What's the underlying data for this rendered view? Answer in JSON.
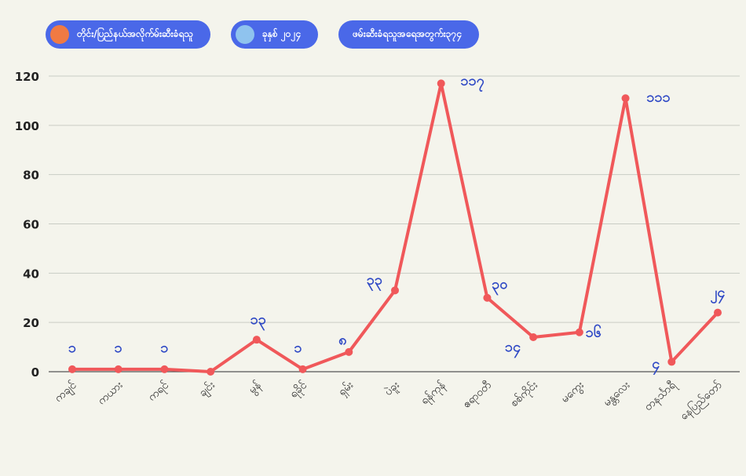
{
  "legend": {
    "items": [
      {
        "label": "တိုင်း/ပြည်နယ်အလိုက်မ်းဆီးခံရသူ",
        "color": "#f07a43"
      },
      {
        "label": "ခုနှစ် ၂၀၂၄",
        "color": "#8fc3ee"
      },
      {
        "label": "ဖမ်းဆီးခံရသူအရေအတွက်း၃၇၄"
      }
    ]
  },
  "chart_data": {
    "type": "line",
    "categories": [
      "ကချင်",
      "ကယား",
      "ကရင်",
      "ချင်း",
      "မွန်",
      "ရခိုင်",
      "ရှမ်း",
      "ပဲခူး",
      "ရန်ကုန်",
      "ဧရာဝတီ",
      "စစ်ကိုင်း",
      "မကွေး",
      "မန္တလေး",
      "တနင်္သာရီ",
      "နေပြည်တော်"
    ],
    "values": [
      1,
      1,
      1,
      0,
      13,
      1,
      8,
      33,
      117,
      30,
      14,
      16,
      111,
      4,
      24
    ],
    "data_labels": [
      "၁",
      "၁",
      "၁",
      "",
      "၁၃",
      "၁",
      "၈",
      "၃၃",
      "၁၁၇",
      "၃၀",
      "၁၄",
      "၁၆",
      "၁၁၁",
      "၄",
      "၂၄"
    ],
    "y_ticks": [
      0,
      20,
      40,
      60,
      80,
      100,
      120
    ],
    "ylim": [
      0,
      120
    ],
    "grid": true,
    "line_color": "#f0585a",
    "label_color": "#2f49c5"
  }
}
